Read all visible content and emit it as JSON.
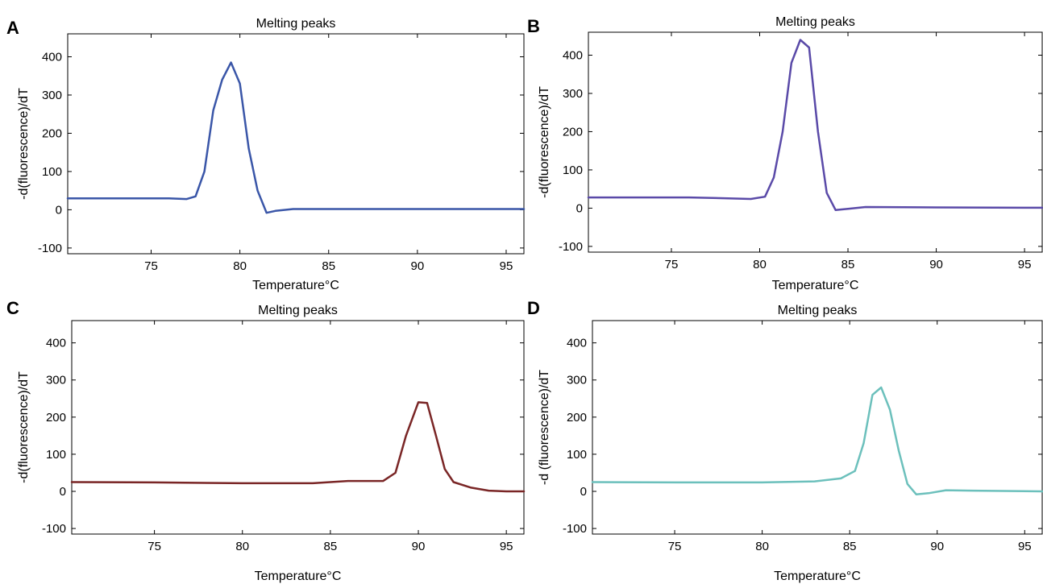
{
  "chart_data": [
    {
      "panel_label": "A",
      "type": "line",
      "title": "Melting peaks",
      "xlabel": "Temperature°C",
      "ylabel": "-d(fluorescence)/dT",
      "xlim": [
        70.3,
        96
      ],
      "ylim": [
        -115,
        460
      ],
      "xticks": [
        75,
        80,
        85,
        90,
        95
      ],
      "yticks": [
        -100,
        0,
        100,
        200,
        300,
        400
      ],
      "grid": false,
      "color": "#3a56a8",
      "series": [
        {
          "x": [
            70.3,
            72,
            74,
            76,
            77,
            77.5,
            78,
            78.5,
            79,
            79.5,
            80,
            80.5,
            81,
            81.5,
            82,
            83,
            85,
            90,
            96
          ],
          "y": [
            30,
            30,
            30,
            30,
            28,
            35,
            100,
            260,
            340,
            385,
            330,
            160,
            50,
            -8,
            -3,
            2,
            2,
            2,
            2
          ]
        }
      ]
    },
    {
      "panel_label": "B",
      "type": "line",
      "title": "Melting peaks",
      "xlabel": "Temperature°C",
      "ylabel": "-d(fluorescence)/dT",
      "xlim": [
        70.3,
        96
      ],
      "ylim": [
        -115,
        460
      ],
      "xticks": [
        75,
        80,
        85,
        90,
        95
      ],
      "yticks": [
        -100,
        0,
        100,
        200,
        300,
        400
      ],
      "grid": false,
      "color": "#5a4aa8",
      "series": [
        {
          "x": [
            70.3,
            72,
            74,
            76,
            78,
            79.5,
            80.3,
            80.8,
            81.3,
            81.8,
            82.3,
            82.8,
            83.3,
            83.8,
            84.3,
            85,
            86,
            90,
            96
          ],
          "y": [
            28,
            28,
            28,
            28,
            26,
            24,
            30,
            80,
            200,
            380,
            440,
            420,
            200,
            40,
            -5,
            -2,
            3,
            2,
            1
          ]
        }
      ]
    },
    {
      "panel_label": "C",
      "type": "line",
      "title": "Melting peaks",
      "xlabel": "Temperature°C",
      "ylabel": "-d(fluorescence)/dT",
      "xlim": [
        70.3,
        96
      ],
      "ylim": [
        -115,
        460
      ],
      "xticks": [
        75,
        80,
        85,
        90,
        95
      ],
      "yticks": [
        -100,
        0,
        100,
        200,
        300,
        400
      ],
      "grid": false,
      "color": "#7a2626",
      "series": [
        {
          "x": [
            70.3,
            75,
            80,
            84,
            86,
            88,
            88.7,
            89.3,
            90,
            90.5,
            91,
            91.5,
            92,
            93,
            94,
            95,
            96
          ],
          "y": [
            25,
            24,
            22,
            22,
            28,
            28,
            50,
            150,
            240,
            238,
            150,
            60,
            25,
            10,
            2,
            0,
            0
          ]
        }
      ]
    },
    {
      "panel_label": "D",
      "type": "line",
      "title": "Melting peaks",
      "xlabel": "Temperature°C",
      "ylabel": "-d (fluorescence)/dT",
      "xlim": [
        70.3,
        96
      ],
      "ylim": [
        -115,
        460
      ],
      "xticks": [
        75,
        80,
        85,
        90,
        95
      ],
      "yticks": [
        -100,
        0,
        100,
        200,
        300,
        400
      ],
      "grid": false,
      "color": "#6cc0bc",
      "series": [
        {
          "x": [
            70.3,
            75,
            80,
            83,
            84.5,
            85.3,
            85.8,
            86.3,
            86.8,
            87.3,
            87.8,
            88.3,
            88.8,
            89.5,
            90.5,
            92,
            96
          ],
          "y": [
            25,
            24,
            24,
            27,
            35,
            55,
            130,
            260,
            280,
            220,
            110,
            20,
            -8,
            -5,
            3,
            2,
            0
          ]
        }
      ]
    }
  ]
}
